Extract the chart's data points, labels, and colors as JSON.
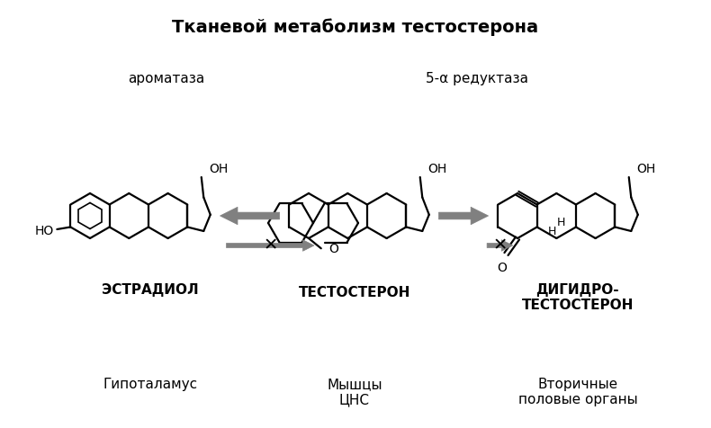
{
  "title": "Тканевой метаболизм тестостерона",
  "label_aromatase": "ароматаза",
  "label_reductase": "5-α редуктаза",
  "label_estradiol": "ЭСТРАДИОЛ",
  "label_testosterone": "ТЕСТОСТЕРОН",
  "label_dht": "ДИГИДРО-\nТЕСТОСТЕРОН",
  "label_hypothalamus": "Гипоталамус",
  "label_muscles": "Мышцы\nЦНС",
  "label_secondary": "Вторичные\nполовые органы",
  "bg_color": "#ffffff",
  "line_color": "#000000",
  "arrow_color": "#808080"
}
